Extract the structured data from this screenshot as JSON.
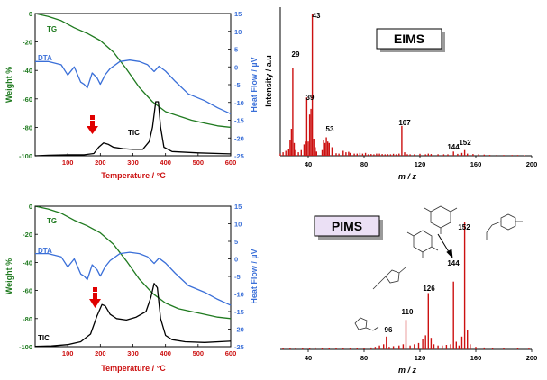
{
  "figure": {
    "colors": {
      "tg": "#1f7a1f",
      "dta": "#3a6fd8",
      "tic": "#000000",
      "ms": "#cc1111",
      "accent_red": "#e00000",
      "axis_left": "#1f7a1f",
      "axis_right": "#3a6fd8",
      "axis_x": "#cc1111"
    }
  },
  "chart_data": [
    {
      "type": "line",
      "id": "tga_top",
      "xlabel": "Temperature / °C",
      "ylabel_left": "Weight %",
      "ylabel_right": "Heat Flow / µV",
      "xlim": [
        0,
        600
      ],
      "ylim_left": [
        -100,
        0
      ],
      "ylim_right": [
        -25,
        15
      ],
      "xticks": [
        "100",
        "200",
        "300",
        "400",
        "500",
        "600"
      ],
      "yticks_left": [
        "0",
        "-20",
        "-40",
        "-60",
        "-80",
        "-100"
      ],
      "yticks_right": [
        "15",
        "10",
        "5",
        "0",
        "-5",
        "-10",
        "-15",
        "-20",
        "-25"
      ],
      "labels": {
        "tg": "TG",
        "dta": "DTA",
        "tic": "TIC"
      },
      "series": [
        {
          "name": "TG",
          "axis": "left",
          "x": [
            0,
            40,
            80,
            120,
            160,
            200,
            240,
            280,
            320,
            360,
            400,
            440,
            480,
            520,
            560,
            600
          ],
          "y": [
            0,
            -2,
            -5,
            -10,
            -14,
            -19,
            -27,
            -39,
            -52,
            -62,
            -69,
            -72,
            -75,
            -77,
            -79,
            -80
          ]
        },
        {
          "name": "DTA",
          "axis": "right",
          "x": [
            0,
            40,
            80,
            100,
            120,
            140,
            150,
            160,
            175,
            190,
            200,
            215,
            230,
            260,
            290,
            320,
            345,
            365,
            380,
            400,
            430,
            470,
            520,
            560,
            600
          ],
          "y": [
            1.5,
            1.5,
            0.6,
            -2.3,
            0,
            -4.3,
            -4.9,
            -5.9,
            -1.7,
            -3.1,
            -4.9,
            -2.2,
            -0.5,
            1.5,
            1.9,
            1.5,
            0.6,
            -1.3,
            0.2,
            -1.2,
            -4.1,
            -7.6,
            -9.5,
            -11.5,
            -13.2
          ]
        },
        {
          "name": "TIC",
          "axis": "left",
          "x": [
            0,
            40,
            100,
            150,
            180,
            195,
            210,
            225,
            240,
            270,
            300,
            330,
            350,
            360,
            370,
            378,
            385,
            395,
            420,
            500,
            600
          ],
          "y": [
            -100,
            -99.6,
            -99.3,
            -99.3,
            -98.4,
            -94,
            -91,
            -92,
            -94,
            -95,
            -95.5,
            -95.5,
            -90,
            -80,
            -62,
            -62,
            -80,
            -94,
            -97,
            -98,
            -98.7
          ]
        }
      ]
    },
    {
      "type": "bar",
      "id": "eims",
      "title": "EIMS",
      "xlabel": "m / z",
      "ylabel": "Intensity / a.u",
      "xlim": [
        20,
        200
      ],
      "xticks": [
        "40",
        "80",
        "120",
        "160",
        "200"
      ],
      "peak_labels": [
        "43",
        "29",
        "39",
        "53",
        "107",
        "144",
        "152"
      ],
      "x": [
        20,
        22,
        24,
        26,
        27,
        28,
        29,
        30,
        31,
        33,
        35,
        37,
        38,
        39,
        40,
        41,
        42,
        43,
        44,
        45,
        46,
        50,
        51,
        52,
        53,
        54,
        55,
        57,
        60,
        62,
        65,
        67,
        69,
        70,
        73,
        75,
        77,
        79,
        81,
        83,
        85,
        87,
        89,
        91,
        93,
        95,
        97,
        99,
        101,
        103,
        105,
        107,
        109,
        111,
        113,
        116,
        120,
        124,
        126,
        128,
        133,
        137,
        140,
        144,
        147,
        150,
        152,
        154,
        158,
        162,
        166,
        170,
        175,
        180,
        186,
        190,
        195
      ],
      "values": [
        1.5,
        2.5,
        3.5,
        4.5,
        11,
        19,
        62,
        9,
        4,
        2.5,
        4,
        8,
        10,
        41,
        10,
        29,
        33,
        100,
        12,
        6,
        3,
        4,
        11,
        9,
        13,
        10,
        9,
        6,
        1.8,
        1.5,
        3.5,
        2.5,
        2.8,
        2,
        1.5,
        1.5,
        2,
        1.5,
        2,
        1,
        1.2,
        1,
        1.5,
        1.5,
        1.2,
        1,
        1.1,
        1,
        1.4,
        1,
        1.5,
        21,
        2.5,
        1.1,
        1,
        1,
        1.4,
        1,
        1.5,
        1.2,
        1.1,
        1,
        1,
        3,
        1.3,
        2,
        4,
        1.5,
        1.2,
        1,
        0.8,
        0.6,
        0.6,
        0.5,
        0.5,
        0.5,
        0.3
      ]
    },
    {
      "type": "line",
      "id": "tga_bottom",
      "xlabel": "Temperature / °C",
      "ylabel_left": "Weight %",
      "ylabel_right": "Heat Flow / µV",
      "xlim": [
        0,
        600
      ],
      "ylim_left": [
        -100,
        0
      ],
      "ylim_right": [
        -25,
        15
      ],
      "xticks": [
        "100",
        "200",
        "300",
        "400",
        "500",
        "600"
      ],
      "yticks_left": [
        "0",
        "-20",
        "-40",
        "-60",
        "-80",
        "-100"
      ],
      "yticks_right": [
        "15",
        "10",
        "5",
        "0",
        "-5",
        "-10",
        "-15",
        "-20",
        "-25"
      ],
      "labels": {
        "tg": "TG",
        "dta": "DTA",
        "tic": "TIC"
      },
      "series": [
        {
          "name": "TG",
          "axis": "left",
          "x": [
            0,
            40,
            80,
            120,
            160,
            200,
            240,
            280,
            320,
            360,
            400,
            440,
            480,
            520,
            560,
            600
          ],
          "y": [
            0,
            -2,
            -5,
            -10,
            -14,
            -19,
            -27,
            -39,
            -52,
            -62,
            -69,
            -73,
            -75,
            -77,
            -79,
            -80
          ]
        },
        {
          "name": "DTA",
          "axis": "right",
          "x": [
            0,
            40,
            80,
            100,
            120,
            140,
            150,
            160,
            175,
            190,
            200,
            215,
            230,
            260,
            290,
            320,
            345,
            365,
            380,
            400,
            430,
            470,
            520,
            560,
            600
          ],
          "y": [
            1.5,
            1.5,
            0.6,
            -2.3,
            0,
            -4.3,
            -4.9,
            -5.9,
            -1.7,
            -3.1,
            -4.9,
            -2.2,
            -0.5,
            1.5,
            1.9,
            1.5,
            0.6,
            -1.3,
            0.2,
            -1.2,
            -4.1,
            -7.6,
            -9.5,
            -11.5,
            -13.2
          ]
        },
        {
          "name": "TIC",
          "axis": "left",
          "x": [
            0,
            50,
            100,
            140,
            170,
            190,
            205,
            215,
            230,
            250,
            280,
            310,
            340,
            355,
            365,
            375,
            385,
            400,
            420,
            460,
            520,
            600
          ],
          "y": [
            -99.8,
            -99.5,
            -98.5,
            -96.5,
            -91,
            -78,
            -70,
            -71,
            -77,
            -80,
            -81,
            -79,
            -75,
            -65,
            -55,
            -58,
            -80,
            -92,
            -95,
            -96.5,
            -97,
            -96
          ]
        }
      ]
    },
    {
      "type": "bar",
      "id": "pims",
      "title": "PIMS",
      "xlabel": "m / z",
      "xlim": [
        20,
        200
      ],
      "xticks": [
        "40",
        "80",
        "120",
        "160",
        "200"
      ],
      "peak_labels": [
        "152",
        "144",
        "126",
        "110",
        "96"
      ],
      "x": [
        22,
        27,
        31,
        36,
        41,
        45,
        50,
        55,
        60,
        65,
        70,
        75,
        80,
        85,
        88,
        91,
        94,
        96,
        98,
        101,
        105,
        108,
        110,
        113,
        116,
        119,
        122,
        124,
        126,
        128,
        130,
        133,
        136,
        139,
        142,
        144,
        146,
        148,
        150,
        152,
        154,
        156,
        160,
        166,
        172,
        180,
        190,
        198
      ],
      "values": [
        1,
        0.8,
        1,
        1.2,
        1,
        1.5,
        1.2,
        1,
        1.2,
        1,
        1,
        1.3,
        1.4,
        1.5,
        2,
        3,
        4,
        10,
        2,
        2.5,
        3,
        4,
        23,
        3,
        4,
        5,
        8,
        11,
        44,
        9,
        4,
        3,
        3,
        3.5,
        4,
        53,
        6,
        3,
        10,
        100,
        15,
        4,
        2,
        1.5,
        1.2,
        1,
        0.8,
        0.6
      ]
    }
  ]
}
